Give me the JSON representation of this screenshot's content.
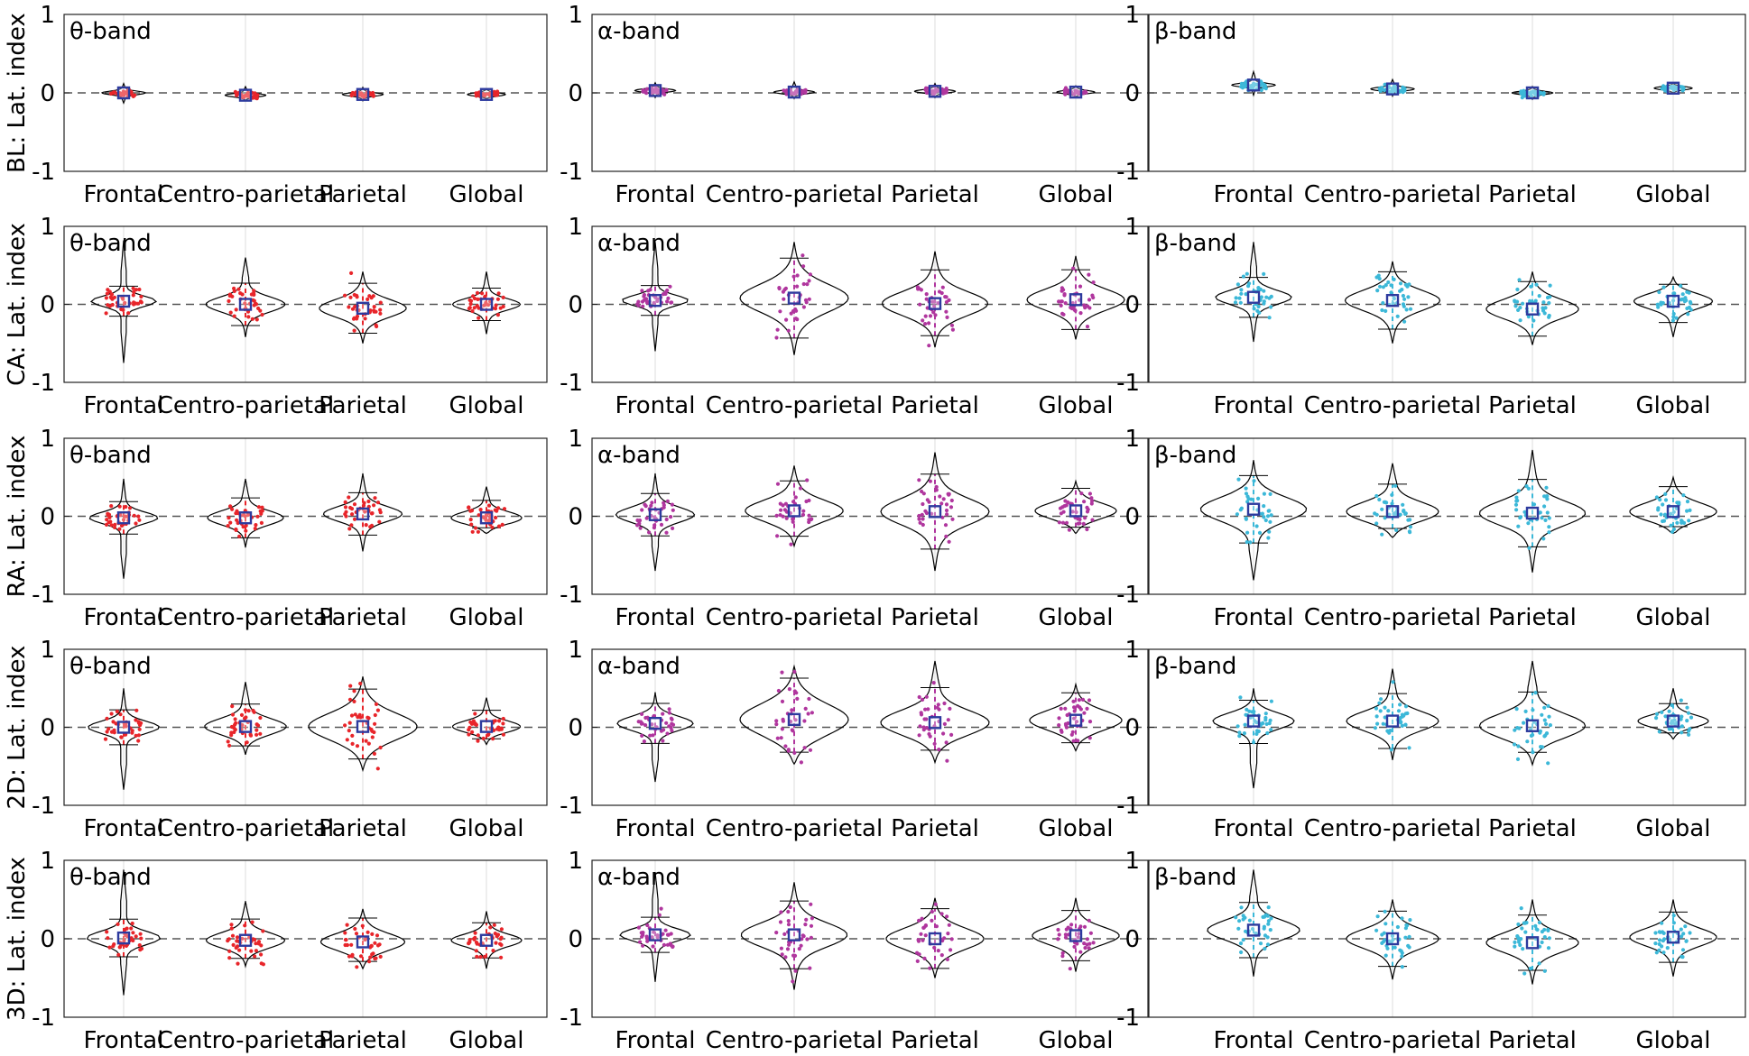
{
  "figure": {
    "rows": [
      "BL",
      "CA",
      "RA",
      "2D",
      "3D"
    ],
    "row_ylabel_suffix": ": Lat. index",
    "bands": [
      "θ-band",
      "α-band",
      "β-band"
    ]
  },
  "colors": {
    "theta": "#e8252a",
    "alpha": "#b0369e",
    "beta": "#3cb8d8",
    "mean_marker": "#2d3a9e",
    "axis": "#000000",
    "zero_line": "#555555",
    "vgrid": "#e3e3e3"
  },
  "chart_data": [
    {
      "type": "violin",
      "row": "BL",
      "band": "θ-band",
      "categories": [
        "Frontal",
        "Centro-parietal",
        "Parietal",
        "Global"
      ],
      "ylim": [
        -1,
        1
      ],
      "yticks": [
        "-1",
        "0",
        "1"
      ],
      "mean": [
        0.0,
        -0.03,
        -0.02,
        -0.02
      ],
      "min": [
        -0.13,
        -0.1,
        -0.1,
        -0.07
      ],
      "max": [
        0.12,
        0.08,
        0.07,
        0.05
      ],
      "spread": [
        0.04,
        0.03,
        0.03,
        0.02
      ]
    },
    {
      "type": "violin",
      "row": "BL",
      "band": "α-band",
      "categories": [
        "Frontal",
        "Centro-parietal",
        "Parietal",
        "Global"
      ],
      "ylim": [
        -1,
        1
      ],
      "yticks": [
        "-1",
        "0",
        "1"
      ],
      "mean": [
        0.03,
        0.01,
        0.02,
        0.01
      ],
      "min": [
        -0.06,
        -0.07,
        -0.06,
        -0.05
      ],
      "max": [
        0.13,
        0.14,
        0.12,
        0.09
      ],
      "spread": [
        0.03,
        0.03,
        0.03,
        0.02
      ]
    },
    {
      "type": "violin",
      "row": "BL",
      "band": "β-band",
      "categories": [
        "Frontal",
        "Centro-parietal",
        "Parietal",
        "Global"
      ],
      "ylim": [
        -1,
        1
      ],
      "yticks": [
        "-1",
        "0",
        "1"
      ],
      "mean": [
        0.1,
        0.05,
        0.0,
        0.06
      ],
      "min": [
        -0.03,
        -0.04,
        -0.08,
        0.0
      ],
      "max": [
        0.27,
        0.17,
        0.08,
        0.12
      ],
      "spread": [
        0.04,
        0.04,
        0.03,
        0.02
      ]
    },
    {
      "type": "violin",
      "row": "CA",
      "band": "θ-band",
      "categories": [
        "Frontal",
        "Centro-parietal",
        "Parietal",
        "Global"
      ],
      "ylim": [
        -1,
        1
      ],
      "yticks": [
        "-1",
        "0",
        "1"
      ],
      "mean": [
        0.04,
        0.0,
        -0.05,
        0.0
      ],
      "min": [
        -0.75,
        -0.42,
        -0.5,
        -0.38
      ],
      "max": [
        0.82,
        0.6,
        0.42,
        0.42
      ],
      "spread": [
        0.12,
        0.17,
        0.2,
        0.13
      ]
    },
    {
      "type": "violin",
      "row": "CA",
      "band": "α-band",
      "categories": [
        "Frontal",
        "Centro-parietal",
        "Parietal",
        "Global"
      ],
      "ylim": [
        -1,
        1
      ],
      "yticks": [
        "-1",
        "0",
        "1"
      ],
      "mean": [
        0.05,
        0.08,
        0.01,
        0.06
      ],
      "min": [
        -0.6,
        -0.65,
        -0.55,
        -0.45
      ],
      "max": [
        0.8,
        0.8,
        0.68,
        0.62
      ],
      "spread": [
        0.12,
        0.32,
        0.27,
        0.24
      ]
    },
    {
      "type": "violin",
      "row": "CA",
      "band": "β-band",
      "categories": [
        "Frontal",
        "Centro-parietal",
        "Parietal",
        "Global"
      ],
      "ylim": [
        -1,
        1
      ],
      "yticks": [
        "-1",
        "0",
        "1"
      ],
      "mean": [
        0.09,
        0.05,
        -0.06,
        0.04
      ],
      "min": [
        -0.48,
        -0.5,
        -0.52,
        -0.42
      ],
      "max": [
        0.8,
        0.55,
        0.42,
        0.35
      ],
      "spread": [
        0.16,
        0.23,
        0.22,
        0.17
      ]
    },
    {
      "type": "violin",
      "row": "RA",
      "band": "θ-band",
      "categories": [
        "Frontal",
        "Centro-parietal",
        "Parietal",
        "Global"
      ],
      "ylim": [
        -1,
        1
      ],
      "yticks": [
        "-1",
        "0",
        "1"
      ],
      "mean": [
        -0.02,
        -0.02,
        0.03,
        -0.02
      ],
      "min": [
        -0.8,
        -0.4,
        -0.45,
        -0.22
      ],
      "max": [
        0.48,
        0.48,
        0.55,
        0.38
      ],
      "spread": [
        0.13,
        0.16,
        0.17,
        0.14
      ]
    },
    {
      "type": "violin",
      "row": "RA",
      "band": "α-band",
      "categories": [
        "Frontal",
        "Centro-parietal",
        "Parietal",
        "Global"
      ],
      "ylim": [
        -1,
        1
      ],
      "yticks": [
        "-1",
        "0",
        "1"
      ],
      "mean": [
        0.02,
        0.07,
        0.06,
        0.07
      ],
      "min": [
        -0.7,
        -0.38,
        -0.7,
        -0.22
      ],
      "max": [
        0.55,
        0.65,
        0.82,
        0.45
      ],
      "spread": [
        0.17,
        0.24,
        0.3,
        0.18
      ]
    },
    {
      "type": "violin",
      "row": "RA",
      "band": "β-band",
      "categories": [
        "Frontal",
        "Centro-parietal",
        "Parietal",
        "Global"
      ],
      "ylim": [
        -1,
        1
      ],
      "yticks": [
        "-1",
        "0",
        "1"
      ],
      "mean": [
        0.09,
        0.06,
        0.04,
        0.06
      ],
      "min": [
        -0.82,
        -0.27,
        -0.72,
        -0.22
      ],
      "max": [
        0.72,
        0.68,
        0.85,
        0.5
      ],
      "spread": [
        0.27,
        0.22,
        0.27,
        0.2
      ]
    },
    {
      "type": "violin",
      "row": "2D",
      "band": "θ-band",
      "categories": [
        "Frontal",
        "Centro-parietal",
        "Parietal",
        "Global"
      ],
      "ylim": [
        -1,
        1
      ],
      "yticks": [
        "-1",
        "0",
        "1"
      ],
      "mean": [
        0.0,
        0.01,
        0.01,
        0.01
      ],
      "min": [
        -0.8,
        -0.35,
        -0.55,
        -0.22
      ],
      "max": [
        0.5,
        0.58,
        0.65,
        0.38
      ],
      "spread": [
        0.14,
        0.18,
        0.3,
        0.13
      ]
    },
    {
      "type": "violin",
      "row": "2D",
      "band": "α-band",
      "categories": [
        "Frontal",
        "Centro-parietal",
        "Parietal",
        "Global"
      ],
      "ylim": [
        -1,
        1
      ],
      "yticks": [
        "-1",
        "0",
        "1"
      ],
      "mean": [
        0.05,
        0.1,
        0.06,
        0.09
      ],
      "min": [
        -0.7,
        -0.47,
        -0.45,
        -0.3
      ],
      "max": [
        0.45,
        0.78,
        0.85,
        0.55
      ],
      "spread": [
        0.16,
        0.35,
        0.28,
        0.22
      ]
    },
    {
      "type": "violin",
      "row": "2D",
      "band": "β-band",
      "categories": [
        "Frontal",
        "Centro-parietal",
        "Parietal",
        "Global"
      ],
      "ylim": [
        -1,
        1
      ],
      "yticks": [
        "-1",
        "0",
        "1"
      ],
      "mean": [
        0.08,
        0.08,
        0.02,
        0.08
      ],
      "min": [
        -0.78,
        -0.42,
        -0.48,
        -0.15
      ],
      "max": [
        0.5,
        0.75,
        0.85,
        0.5
      ],
      "spread": [
        0.18,
        0.22,
        0.27,
        0.14
      ]
    },
    {
      "type": "violin",
      "row": "3D",
      "band": "θ-band",
      "categories": [
        "Frontal",
        "Centro-parietal",
        "Parietal",
        "Global"
      ],
      "ylim": [
        -1,
        1
      ],
      "yticks": [
        "-1",
        "0",
        "1"
      ],
      "mean": [
        0.01,
        -0.02,
        -0.04,
        -0.02
      ],
      "min": [
        -0.72,
        -0.35,
        -0.38,
        -0.38
      ],
      "max": [
        0.88,
        0.48,
        0.38,
        0.35
      ],
      "spread": [
        0.15,
        0.17,
        0.19,
        0.14
      ]
    },
    {
      "type": "violin",
      "row": "3D",
      "band": "α-band",
      "categories": [
        "Frontal",
        "Centro-parietal",
        "Parietal",
        "Global"
      ],
      "ylim": [
        -1,
        1
      ],
      "yticks": [
        "-1",
        "0",
        "1"
      ],
      "mean": [
        0.05,
        0.05,
        0.0,
        0.04
      ],
      "min": [
        -0.55,
        -0.65,
        -0.5,
        -0.42
      ],
      "max": [
        0.85,
        0.72,
        0.52,
        0.52
      ],
      "spread": [
        0.14,
        0.27,
        0.24,
        0.2
      ]
    },
    {
      "type": "violin",
      "row": "3D",
      "band": "β-band",
      "categories": [
        "Frontal",
        "Centro-parietal",
        "Parietal",
        "Global"
      ],
      "ylim": [
        -1,
        1
      ],
      "yticks": [
        "-1",
        "0",
        "1"
      ],
      "mean": [
        0.11,
        0.0,
        -0.05,
        0.02
      ],
      "min": [
        -0.48,
        -0.52,
        -0.58,
        -0.48
      ],
      "max": [
        0.88,
        0.5,
        0.5,
        0.5
      ],
      "spread": [
        0.22,
        0.22,
        0.22,
        0.2
      ]
    }
  ]
}
